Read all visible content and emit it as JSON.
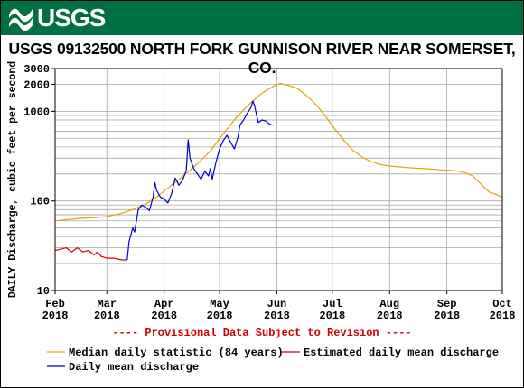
{
  "header": {
    "logo_text": "USGS",
    "colors": {
      "brand": "#006f41"
    }
  },
  "chart_data": {
    "type": "line",
    "title": "USGS 09132500 NORTH FORK GUNNISON RIVER NEAR SOMERSET, CO.",
    "ylabel": "DAILY Discharge, cubic feet per second",
    "xlabel": "",
    "y_scale": "log",
    "ylim": [
      10,
      3000
    ],
    "xlim": [
      "2018-02-01",
      "2018-10-01"
    ],
    "grid": true,
    "y_ticks": [
      {
        "value": 10,
        "label": "10"
      },
      {
        "value": 100,
        "label": "100"
      },
      {
        "value": 1000,
        "label": "1000"
      },
      {
        "value": 2000,
        "label": "2000"
      },
      {
        "value": 3000,
        "label": "3000"
      }
    ],
    "x_ticks": [
      {
        "date": "2018-02-01",
        "month": "Feb",
        "year": "2018"
      },
      {
        "date": "2018-03-01",
        "month": "Mar",
        "year": "2018"
      },
      {
        "date": "2018-04-01",
        "month": "Apr",
        "year": "2018"
      },
      {
        "date": "2018-05-01",
        "month": "May",
        "year": "2018"
      },
      {
        "date": "2018-06-01",
        "month": "Jun",
        "year": "2018"
      },
      {
        "date": "2018-07-01",
        "month": "Jul",
        "year": "2018"
      },
      {
        "date": "2018-08-01",
        "month": "Aug",
        "year": "2018"
      },
      {
        "date": "2018-09-01",
        "month": "Sep",
        "year": "2018"
      },
      {
        "date": "2018-10-01",
        "month": "Oct",
        "year": "2018"
      }
    ],
    "annotation": "---- Provisional Data Subject to Revision ----",
    "series": [
      {
        "name": "Median daily statistic (84 years)",
        "color": "#e1a300",
        "points": [
          [
            "2018-02-01",
            60
          ],
          [
            "2018-02-08",
            62
          ],
          [
            "2018-02-15",
            64
          ],
          [
            "2018-02-22",
            65
          ],
          [
            "2018-03-01",
            67
          ],
          [
            "2018-03-08",
            72
          ],
          [
            "2018-03-15",
            80
          ],
          [
            "2018-03-22",
            92
          ],
          [
            "2018-03-29",
            115
          ],
          [
            "2018-04-05",
            150
          ],
          [
            "2018-04-12",
            195
          ],
          [
            "2018-04-19",
            260
          ],
          [
            "2018-04-26",
            360
          ],
          [
            "2018-05-03",
            560
          ],
          [
            "2018-05-10",
            850
          ],
          [
            "2018-05-17",
            1200
          ],
          [
            "2018-05-24",
            1600
          ],
          [
            "2018-05-31",
            1950
          ],
          [
            "2018-06-03",
            2050
          ],
          [
            "2018-06-07",
            1950
          ],
          [
            "2018-06-12",
            1800
          ],
          [
            "2018-06-17",
            1500
          ],
          [
            "2018-06-22",
            1200
          ],
          [
            "2018-06-27",
            900
          ],
          [
            "2018-07-02",
            650
          ],
          [
            "2018-07-07",
            480
          ],
          [
            "2018-07-12",
            370
          ],
          [
            "2018-07-17",
            310
          ],
          [
            "2018-07-22",
            275
          ],
          [
            "2018-07-27",
            255
          ],
          [
            "2018-08-01",
            245
          ],
          [
            "2018-08-08",
            238
          ],
          [
            "2018-08-15",
            232
          ],
          [
            "2018-08-22",
            228
          ],
          [
            "2018-08-29",
            222
          ],
          [
            "2018-09-05",
            218
          ],
          [
            "2018-09-10",
            210
          ],
          [
            "2018-09-15",
            190
          ],
          [
            "2018-09-20",
            150
          ],
          [
            "2018-09-24",
            125
          ],
          [
            "2018-09-27",
            120
          ],
          [
            "2018-09-30",
            112
          ],
          [
            "2018-10-01",
            110
          ]
        ]
      },
      {
        "name": "Estimated daily mean discharge",
        "color": "#cc0000",
        "points": [
          [
            "2018-02-01",
            28
          ],
          [
            "2018-02-04",
            29
          ],
          [
            "2018-02-07",
            30
          ],
          [
            "2018-02-10",
            27
          ],
          [
            "2018-02-13",
            30
          ],
          [
            "2018-02-16",
            27
          ],
          [
            "2018-02-19",
            28
          ],
          [
            "2018-02-22",
            25
          ],
          [
            "2018-02-24",
            27
          ],
          [
            "2018-02-26",
            24
          ],
          [
            "2018-03-01",
            23
          ],
          [
            "2018-03-05",
            23
          ],
          [
            "2018-03-09",
            22
          ],
          [
            "2018-03-12",
            22
          ]
        ]
      },
      {
        "name": "Daily mean discharge",
        "color": "#0000cc",
        "points": [
          [
            "2018-03-12",
            22
          ],
          [
            "2018-03-13",
            35
          ],
          [
            "2018-03-15",
            50
          ],
          [
            "2018-03-16",
            45
          ],
          [
            "2018-03-18",
            80
          ],
          [
            "2018-03-20",
            90
          ],
          [
            "2018-03-22",
            85
          ],
          [
            "2018-03-24",
            78
          ],
          [
            "2018-03-26",
            110
          ],
          [
            "2018-03-27",
            160
          ],
          [
            "2018-03-28",
            130
          ],
          [
            "2018-03-30",
            110
          ],
          [
            "2018-04-01",
            105
          ],
          [
            "2018-04-03",
            95
          ],
          [
            "2018-04-05",
            120
          ],
          [
            "2018-04-07",
            180
          ],
          [
            "2018-04-09",
            150
          ],
          [
            "2018-04-11",
            170
          ],
          [
            "2018-04-13",
            220
          ],
          [
            "2018-04-14",
            480
          ],
          [
            "2018-04-15",
            300
          ],
          [
            "2018-04-17",
            230
          ],
          [
            "2018-04-19",
            200
          ],
          [
            "2018-04-21",
            175
          ],
          [
            "2018-04-23",
            215
          ],
          [
            "2018-04-25",
            190
          ],
          [
            "2018-04-26",
            230
          ],
          [
            "2018-04-27",
            175
          ],
          [
            "2018-04-29",
            270
          ],
          [
            "2018-05-01",
            380
          ],
          [
            "2018-05-03",
            470
          ],
          [
            "2018-05-05",
            540
          ],
          [
            "2018-05-07",
            450
          ],
          [
            "2018-05-09",
            380
          ],
          [
            "2018-05-11",
            520
          ],
          [
            "2018-05-12",
            700
          ],
          [
            "2018-05-14",
            800
          ],
          [
            "2018-05-16",
            950
          ],
          [
            "2018-05-18",
            1100
          ],
          [
            "2018-05-19",
            1300
          ],
          [
            "2018-05-20",
            1150
          ],
          [
            "2018-05-21",
            900
          ],
          [
            "2018-05-22",
            750
          ],
          [
            "2018-05-24",
            800
          ],
          [
            "2018-05-26",
            780
          ],
          [
            "2018-05-28",
            720
          ],
          [
            "2018-05-30",
            700
          ]
        ]
      }
    ],
    "legend_placement": "bottom"
  }
}
